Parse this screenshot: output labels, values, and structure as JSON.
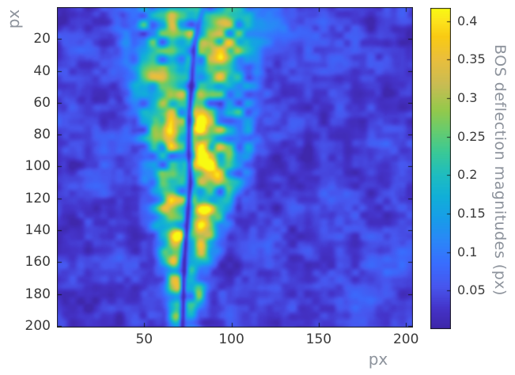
{
  "figure": {
    "axis": {
      "xlabel": "px",
      "ylabel": "px",
      "x_ticks": [
        50,
        100,
        150,
        200
      ],
      "y_ticks": [
        20,
        40,
        60,
        80,
        100,
        120,
        140,
        160,
        180,
        200
      ],
      "tick_label_color": "#3a3a3a",
      "axis_label_color": "#8d939c",
      "frame_color": "#1c1c1c"
    },
    "colorbar": {
      "label": "BOS deflection magnitudes (px)",
      "ticks": [
        0.05,
        0.1,
        0.15,
        0.2,
        0.25,
        0.3,
        0.35,
        0.4
      ],
      "tick_labels": [
        "0.05",
        "0.1",
        "0.15",
        "0.2",
        "0.25",
        "0.3",
        "0.35",
        "0.4"
      ]
    }
  },
  "chart_data": {
    "type": "heatmap",
    "title": "",
    "xlabel": "px",
    "ylabel": "px",
    "x_range": [
      0,
      204
    ],
    "y_range": [
      0,
      201
    ],
    "y_axis_direction": "down",
    "value_label": "BOS deflection magnitudes (px)",
    "value_range": [
      0,
      0.417
    ],
    "x_ticks": [
      50,
      100,
      150,
      200
    ],
    "y_ticks": [
      20,
      40,
      60,
      80,
      100,
      120,
      140,
      160,
      180,
      200
    ],
    "colorbar_ticks": [
      0.05,
      0.1,
      0.15,
      0.2,
      0.25,
      0.3,
      0.35,
      0.4
    ],
    "legend": "none",
    "grid": false,
    "colormap": {
      "name": "parula",
      "stops": [
        [
          0.0,
          "#3e26a8"
        ],
        [
          0.06,
          "#4433c8"
        ],
        [
          0.13,
          "#4756ee"
        ],
        [
          0.2,
          "#396dfe"
        ],
        [
          0.27,
          "#2b86f8"
        ],
        [
          0.34,
          "#189ce9"
        ],
        [
          0.41,
          "#11afd8"
        ],
        [
          0.48,
          "#1fbdbf"
        ],
        [
          0.55,
          "#3bc995"
        ],
        [
          0.62,
          "#6acb6c"
        ],
        [
          0.68,
          "#94c94b"
        ],
        [
          0.76,
          "#c9bc53"
        ],
        [
          0.84,
          "#eabe3c"
        ],
        [
          0.91,
          "#f9cb13"
        ],
        [
          0.96,
          "#fce51c"
        ],
        [
          1.0,
          "#f8fa12"
        ]
      ]
    },
    "field_model": {
      "description": "Turbulent plume of BOS deflection magnitude rising along x~75 px, wide (~74 px) at top of frame and narrowing (~18 px) toward bottom, with a thin dark centerline slit and bright yellow turbulent pockets on both flanks over a mottled dark-blue background.",
      "background_level": 0.035,
      "noise_octaves": [
        [
          4.5,
          0.018,
          11
        ],
        [
          9,
          0.02,
          23
        ],
        [
          20,
          0.014,
          37
        ]
      ],
      "plume_noise": [
        5.5,
        0.9,
        51
      ],
      "plume_edge_power": 4,
      "plume_profile": [
        [
          0,
          77,
          37,
          0.12
        ],
        [
          12,
          77,
          36,
          0.15
        ],
        [
          25,
          78,
          35,
          0.16
        ],
        [
          40,
          77,
          34,
          0.15
        ],
        [
          55,
          78,
          33,
          0.15
        ],
        [
          70,
          79,
          32,
          0.16
        ],
        [
          85,
          80,
          31,
          0.17
        ],
        [
          100,
          80,
          28,
          0.17
        ],
        [
          115,
          78,
          25,
          0.16
        ],
        [
          130,
          77,
          21,
          0.17
        ],
        [
          145,
          75,
          17,
          0.17
        ],
        [
          160,
          74,
          14,
          0.15
        ],
        [
          175,
          73.5,
          11.5,
          0.14
        ],
        [
          190,
          73,
          9.5,
          0.13
        ],
        [
          201,
          73,
          9,
          0.11
        ]
      ],
      "hotspots": [
        [
          61,
          4,
          5,
          4,
          0.1
        ],
        [
          95,
          8,
          5,
          4,
          0.12
        ],
        [
          70,
          14,
          4,
          4,
          0.08
        ],
        [
          94,
          28,
          6,
          6,
          0.2
        ],
        [
          53,
          42,
          5,
          5,
          0.1
        ],
        [
          95,
          44,
          5,
          5,
          0.1
        ],
        [
          64,
          56,
          4,
          5,
          0.08
        ],
        [
          61,
          70,
          4,
          5,
          0.1
        ],
        [
          82,
          72,
          4,
          5,
          0.19
        ],
        [
          63,
          81,
          4,
          6,
          0.18
        ],
        [
          84,
          88,
          4.5,
          6,
          0.21
        ],
        [
          89,
          104,
          5,
          6,
          0.2
        ],
        [
          77,
          98,
          3.5,
          4,
          0.1
        ],
        [
          65,
          121,
          4,
          6,
          0.17
        ],
        [
          84,
          130,
          4,
          5,
          0.18
        ],
        [
          82,
          137,
          4,
          4,
          0.13
        ],
        [
          69,
          145,
          3.5,
          5,
          0.22
        ],
        [
          85,
          154,
          4,
          5,
          0.13
        ],
        [
          68,
          159,
          3.5,
          5,
          0.14
        ],
        [
          68,
          174,
          3.5,
          4,
          0.1
        ],
        [
          81,
          179,
          3,
          4,
          0.08
        ],
        [
          68,
          195,
          3,
          3.5,
          0.18
        ]
      ],
      "background_patches": [
        [
          125,
          12,
          14,
          8,
          0.045
        ],
        [
          160,
          30,
          12,
          9,
          0.03
        ],
        [
          186,
          86,
          9,
          9,
          0.038
        ],
        [
          28,
          100,
          10,
          12,
          0.028
        ],
        [
          30,
          163,
          12,
          10,
          0.03
        ],
        [
          120,
          152,
          10,
          8,
          0.028
        ],
        [
          170,
          186,
          12,
          8,
          0.028
        ],
        [
          14,
          28,
          10,
          8,
          0.028
        ],
        [
          195,
          160,
          10,
          10,
          0.025
        ],
        [
          40,
          25,
          8,
          8,
          0.025
        ]
      ],
      "dark_centerline": {
        "width": 1.4,
        "points": [
          [
            0,
            84,
            0.45
          ],
          [
            12,
            81,
            0.6
          ],
          [
            25,
            78.5,
            0.8
          ],
          [
            45,
            77.5,
            0.85
          ],
          [
            65,
            76,
            0.9
          ],
          [
            90,
            75.5,
            0.85
          ],
          [
            110,
            76.5,
            0.9
          ],
          [
            130,
            75,
            0.9
          ],
          [
            145,
            74,
            0.92
          ],
          [
            160,
            73,
            0.9
          ],
          [
            180,
            72.5,
            0.92
          ],
          [
            201,
            72,
            0.9
          ]
        ]
      }
    }
  }
}
